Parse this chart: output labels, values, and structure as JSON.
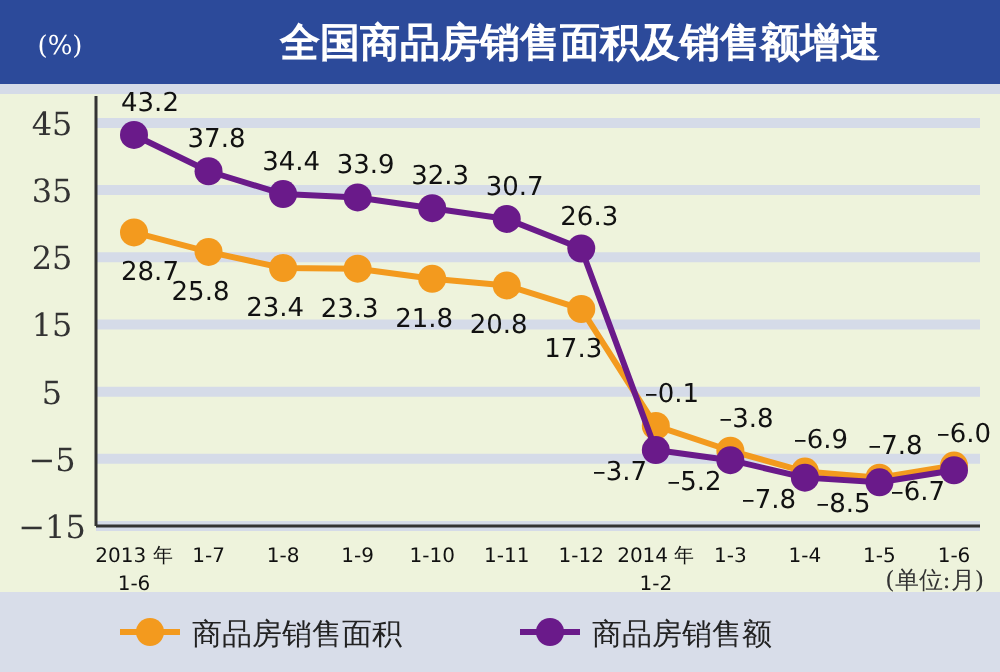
{
  "chart_data": {
    "type": "line",
    "title": "全国商品房销售面积及销售额增速",
    "ylabel": "(%)",
    "categories": [
      "2013 年 1-6",
      "1-7",
      "1-8",
      "1-9",
      "1-10",
      "1-11",
      "1-12",
      "2014 年 1-2",
      "1-3",
      "1-4",
      "1-5",
      "1-6"
    ],
    "series": [
      {
        "name": "商品房销售面积",
        "color": "#f39a1e",
        "values": [
          28.7,
          25.8,
          23.4,
          23.3,
          21.8,
          20.8,
          17.3,
          -0.1,
          -3.8,
          -6.9,
          -7.8,
          -6.0
        ],
        "value_labels": [
          "28.7",
          "25.8",
          "23.4",
          "23.3",
          "21.8",
          "20.8",
          "17.3",
          "–0.1",
          "–3.8",
          "–6.9",
          "–7.8",
          "–6.0"
        ]
      },
      {
        "name": "商品房销售额",
        "color": "#6a1a8a",
        "values": [
          43.2,
          37.8,
          34.4,
          33.9,
          32.3,
          30.7,
          26.3,
          -3.7,
          -5.2,
          -7.8,
          -8.5,
          -6.7
        ],
        "value_labels": [
          "43.2",
          "37.8",
          "34.4",
          "33.9",
          "32.3",
          "30.7",
          "26.3",
          "–3.7",
          "–5.2",
          "–7.8",
          "–8.5",
          "–6.7"
        ]
      }
    ],
    "ylim": [
      -15,
      49
    ],
    "yticks": [
      45,
      35,
      25,
      15,
      5,
      -5,
      -15
    ],
    "grid": "y",
    "legend": "bottom",
    "marker": "circle",
    "annotations": [
      "(单位:月)"
    ]
  }
}
